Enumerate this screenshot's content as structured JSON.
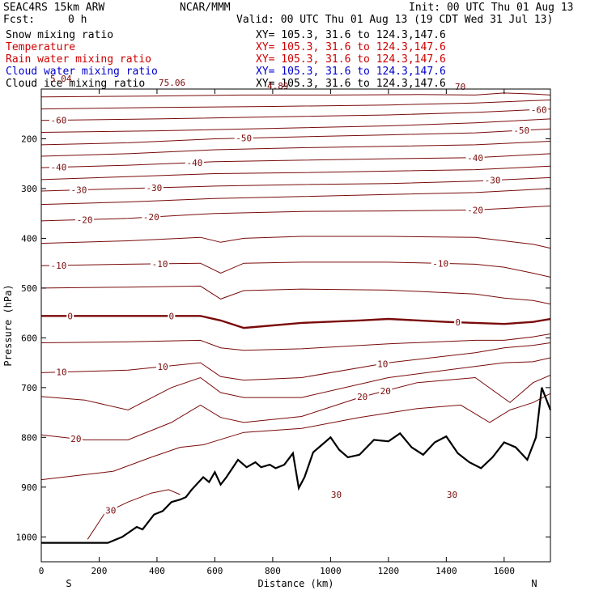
{
  "header": {
    "model": "SEAC4RS 15km ARW",
    "org": "NCAR/MMM",
    "init": "Init: 00 UTC Thu 01 Aug 13",
    "fcst_label": "Fcst:",
    "fcst_value": "0 h",
    "valid": "Valid: 00 UTC Thu 01 Aug 13 (19 CDT Wed 31 Jul 13)"
  },
  "fields": [
    {
      "name": "Snow mixing ratio",
      "xy": "XY= 105.3, 31.6 to 124.3,147.6",
      "color": "#000000"
    },
    {
      "name": "Temperature",
      "xy": "XY= 105.3, 31.6 to 124.3,147.6",
      "color": "#cc0000"
    },
    {
      "name": "Rain water mixing ratio",
      "xy": "XY= 105.3, 31.6 to 124.3,147.6",
      "color": "#cc0000"
    },
    {
      "name": "Cloud water mixing ratio",
      "xy": "XY= 105.3, 31.6 to 124.3,147.6",
      "color": "#0000cc"
    },
    {
      "name": "Cloud ice mixing ratio",
      "xy": "XY= 105.3, 31.6 to 124.3,147.6",
      "color": "#000000"
    }
  ],
  "chart_data": {
    "type": "line",
    "xlabel": "Distance (km)",
    "ylabel": "Pressure (hPa)",
    "xlim": [
      0,
      1760
    ],
    "ylim": [
      1050,
      100
    ],
    "x_ticks": [
      0,
      200,
      400,
      600,
      800,
      1000,
      1200,
      1400,
      1600
    ],
    "y_ticks": [
      200,
      300,
      400,
      500,
      600,
      700,
      800,
      900,
      1000
    ],
    "x_end_labels": {
      "left": "S",
      "right": "N"
    },
    "contour_color": "#7a0a0a",
    "terrain_color": "#000000",
    "contour_interval": 5,
    "small_annotations": [
      "5.04",
      "75.06",
      "4.89",
      "70"
    ],
    "terrain": {
      "x": [
        0,
        100,
        230,
        280,
        330,
        350,
        390,
        420,
        450,
        480,
        500,
        520,
        560,
        580,
        600,
        620,
        640,
        680,
        710,
        740,
        760,
        790,
        810,
        840,
        870,
        890,
        910,
        940,
        970,
        1000,
        1030,
        1060,
        1100,
        1150,
        1200,
        1240,
        1280,
        1320,
        1360,
        1400,
        1440,
        1480,
        1520,
        1560,
        1600,
        1640,
        1680,
        1710,
        1730,
        1760
      ],
      "p": [
        1012,
        1012,
        1012,
        1000,
        980,
        985,
        955,
        948,
        930,
        925,
        920,
        905,
        880,
        890,
        870,
        895,
        880,
        845,
        860,
        850,
        860,
        855,
        862,
        855,
        832,
        902,
        880,
        830,
        815,
        800,
        825,
        840,
        835,
        805,
        808,
        792,
        820,
        835,
        810,
        798,
        832,
        850,
        862,
        840,
        810,
        820,
        845,
        800,
        700,
        745
      ]
    },
    "isotherms": [
      {
        "value": -70,
        "x": [
          0,
          400,
          700,
          1000,
          1300,
          1500,
          1600,
          1700,
          1760
        ],
        "p": [
          116,
          114,
          112,
          112,
          111,
          112,
          108,
          110,
          112
        ]
      },
      {
        "value": -65,
        "x": [
          0,
          400,
          800,
          1200,
          1500,
          1760
        ],
        "p": [
          140,
          137,
          135,
          132,
          128,
          122
        ]
      },
      {
        "value": -60,
        "x": [
          0,
          400,
          800,
          1200,
          1500,
          1760
        ],
        "p": [
          163,
          160,
          156,
          152,
          147,
          140
        ]
      },
      {
        "value": -55,
        "x": [
          0,
          400,
          800,
          1200,
          1500,
          1760
        ],
        "p": [
          187,
          184,
          179,
          174,
          168,
          160
        ]
      },
      {
        "value": -50,
        "x": [
          0,
          300,
          600,
          900,
          1200,
          1500,
          1760
        ],
        "p": [
          212,
          208,
          200,
          196,
          192,
          188,
          180
        ]
      },
      {
        "value": -45,
        "x": [
          0,
          300,
          600,
          900,
          1200,
          1500,
          1760
        ],
        "p": [
          235,
          230,
          222,
          218,
          215,
          212,
          205
        ]
      },
      {
        "value": -40,
        "x": [
          0,
          300,
          600,
          900,
          1200,
          1500,
          1760
        ],
        "p": [
          258,
          253,
          246,
          243,
          240,
          238,
          230
        ]
      },
      {
        "value": -35,
        "x": [
          0,
          300,
          600,
          900,
          1200,
          1500,
          1760
        ],
        "p": [
          282,
          276,
          270,
          268,
          265,
          262,
          255
        ]
      },
      {
        "value": -30,
        "x": [
          0,
          300,
          600,
          900,
          1200,
          1500,
          1760
        ],
        "p": [
          305,
          300,
          295,
          292,
          290,
          285,
          278
        ]
      },
      {
        "value": -25,
        "x": [
          0,
          300,
          600,
          900,
          1200,
          1500,
          1760
        ],
        "p": [
          332,
          327,
          320,
          316,
          312,
          308,
          300
        ]
      },
      {
        "value": -20,
        "x": [
          0,
          300,
          600,
          900,
          1200,
          1500,
          1760
        ],
        "p": [
          365,
          360,
          350,
          346,
          345,
          343,
          335
        ]
      },
      {
        "value": -15,
        "x": [
          0,
          300,
          550,
          620,
          700,
          900,
          1200,
          1500,
          1600,
          1700,
          1760
        ],
        "p": [
          410,
          405,
          398,
          408,
          400,
          396,
          396,
          398,
          405,
          412,
          420
        ]
      },
      {
        "value": -10,
        "x": [
          0,
          300,
          550,
          620,
          700,
          900,
          1200,
          1500,
          1600,
          1700,
          1760
        ],
        "p": [
          455,
          452,
          450,
          470,
          450,
          448,
          448,
          452,
          458,
          470,
          478
        ]
      },
      {
        "value": -5,
        "x": [
          0,
          300,
          550,
          620,
          700,
          900,
          1200,
          1500,
          1600,
          1700,
          1760
        ],
        "p": [
          500,
          498,
          496,
          522,
          505,
          502,
          504,
          512,
          520,
          525,
          532
        ]
      },
      {
        "value": 0,
        "x": [
          0,
          300,
          550,
          620,
          700,
          900,
          1100,
          1200,
          1400,
          1600,
          1700,
          1760
        ],
        "p": [
          556,
          556,
          556,
          565,
          580,
          570,
          565,
          562,
          568,
          572,
          568,
          562
        ]
      },
      {
        "value": 5,
        "x": [
          0,
          300,
          550,
          620,
          700,
          900,
          1200,
          1500,
          1600,
          1700,
          1760
        ],
        "p": [
          610,
          608,
          605,
          620,
          625,
          622,
          612,
          605,
          605,
          598,
          592
        ]
      },
      {
        "value": 10,
        "x": [
          0,
          300,
          550,
          620,
          700,
          900,
          1200,
          1500,
          1600,
          1700,
          1760
        ],
        "p": [
          670,
          665,
          650,
          678,
          685,
          680,
          650,
          630,
          620,
          615,
          610
        ]
      },
      {
        "value": 15,
        "x": [
          0,
          150,
          300,
          450,
          550,
          620,
          700,
          900,
          1200,
          1400,
          1600,
          1700,
          1760
        ],
        "p": [
          718,
          725,
          745,
          700,
          680,
          710,
          720,
          720,
          680,
          665,
          650,
          648,
          640
        ]
      },
      {
        "value": 20,
        "x": [
          0,
          150,
          300,
          450,
          550,
          620,
          700,
          900,
          1100,
          1300,
          1500,
          1620,
          1700,
          1760
        ],
        "p": [
          795,
          805,
          805,
          770,
          735,
          760,
          770,
          758,
          720,
          690,
          680,
          730,
          690,
          675
        ]
      },
      {
        "value": 25,
        "x": [
          0,
          150,
          250,
          380,
          480,
          560,
          700,
          900,
          1100,
          1300,
          1450,
          1550,
          1620,
          1700,
          1760
        ],
        "p": [
          885,
          875,
          868,
          840,
          820,
          815,
          790,
          782,
          760,
          742,
          735,
          770,
          745,
          730,
          712
        ]
      },
      {
        "value": 30,
        "x": [
          160,
          220,
          300,
          380,
          440,
          480
        ],
        "p": [
          1005,
          952,
          930,
          912,
          905,
          915
        ]
      }
    ],
    "label_positions": [
      {
        "value": -60,
        "x": [
          60,
          1720
        ]
      },
      {
        "value": -50,
        "x": [
          700,
          1660
        ]
      },
      {
        "value": -40,
        "x": [
          60,
          530,
          1500
        ]
      },
      {
        "value": -30,
        "x": [
          130,
          390,
          1560
        ]
      },
      {
        "value": -20,
        "x": [
          150,
          380,
          1500
        ]
      },
      {
        "value": -10,
        "x": [
          60,
          410,
          1380
        ]
      },
      {
        "value": 0,
        "x": [
          100,
          450,
          1440
        ]
      },
      {
        "value": 10,
        "x": [
          70,
          420,
          1180
        ]
      },
      {
        "value": 20,
        "x": [
          120,
          1110,
          1190
        ]
      },
      {
        "value": 30,
        "x": [
          240,
          1020,
          1420
        ]
      }
    ]
  }
}
